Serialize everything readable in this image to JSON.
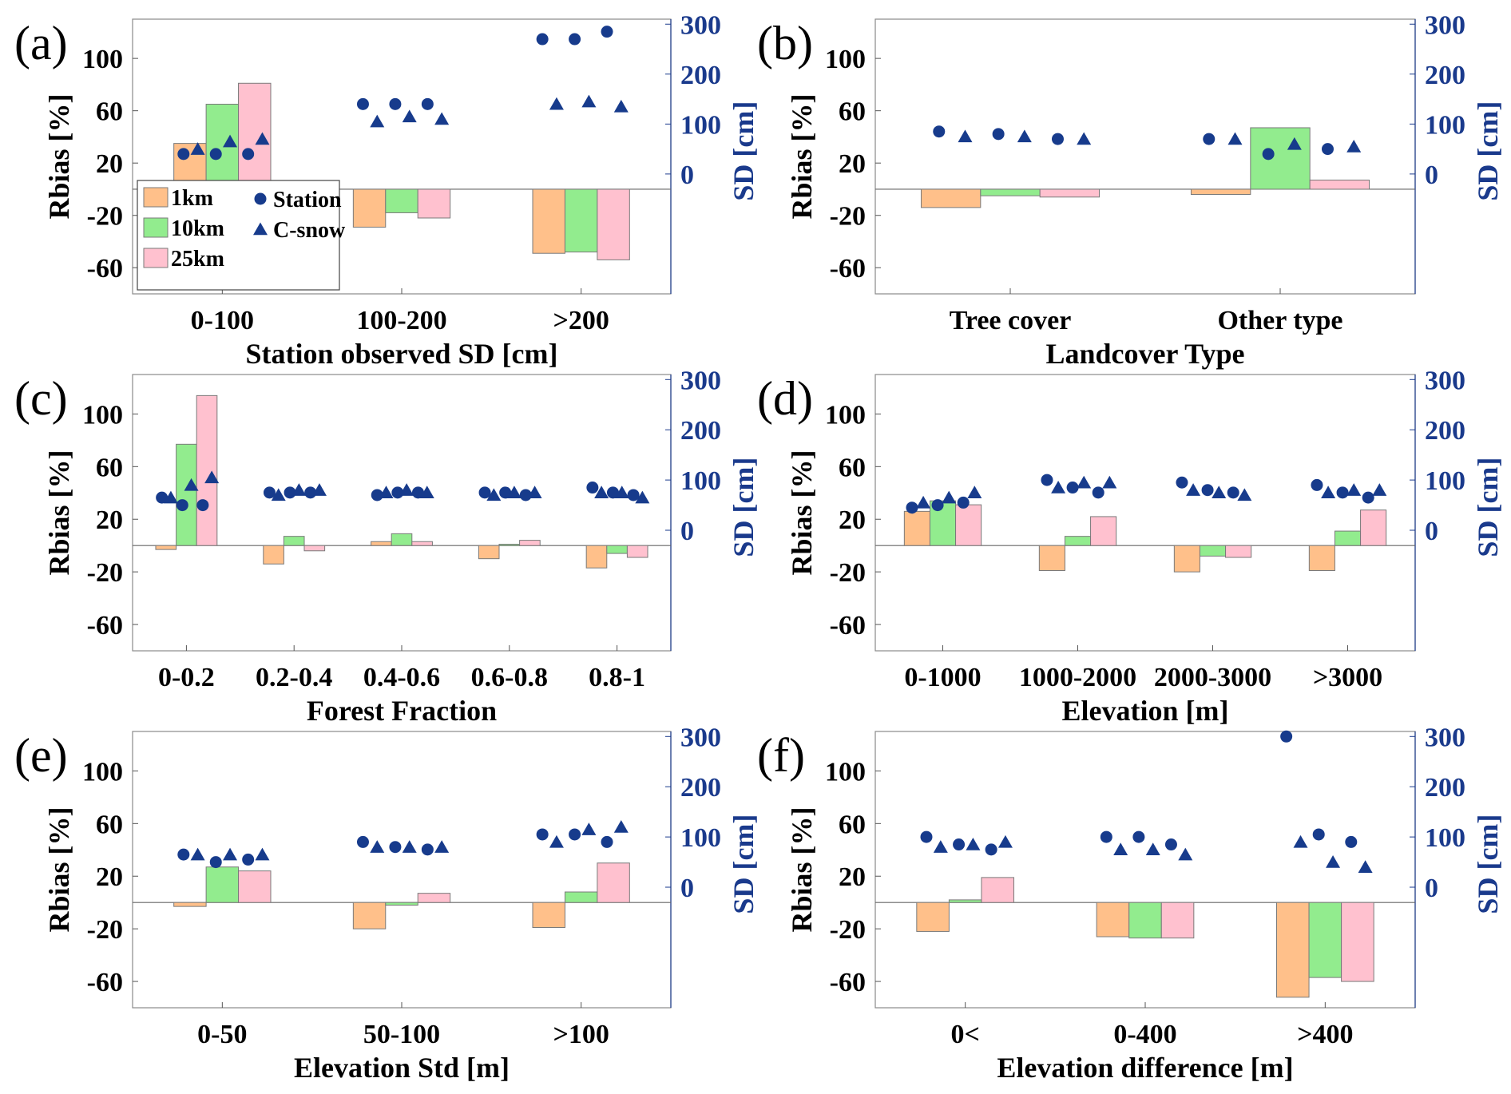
{
  "colors": {
    "res_1km": "#ffc08a",
    "res_10km": "#92ec8e",
    "res_25km": "#ffc1cf",
    "marker": "#173b8c",
    "right_axis": "#1a3a8c"
  },
  "legend": {
    "items": [
      {
        "label": "1km",
        "kind": "bar"
      },
      {
        "label": "10km",
        "kind": "bar"
      },
      {
        "label": "25km",
        "kind": "bar"
      },
      {
        "label": "Station",
        "kind": "circle"
      },
      {
        "label": "C-snow",
        "kind": "triangle"
      }
    ]
  },
  "chart_data": [
    {
      "type": "bar",
      "panel_label": "(a)",
      "xlabel": "Station observed SD [cm]",
      "ylabel": "Rbias [%]",
      "y2label": "SD [cm]",
      "ylim": [
        -80,
        130
      ],
      "yticks": [
        -60,
        -20,
        20,
        60,
        100
      ],
      "y2lim": [
        -240,
        310
      ],
      "y2ticks": [
        0,
        100,
        200,
        300
      ],
      "categories": [
        "0-100",
        "100-200",
        ">200"
      ],
      "series": [
        {
          "name": "1km",
          "values": [
            35,
            -29,
            -49
          ]
        },
        {
          "name": "10km",
          "values": [
            65,
            -18,
            -48
          ]
        },
        {
          "name": "25km",
          "values": [
            81,
            -22,
            -54
          ]
        }
      ],
      "station_sd": [
        [
          40,
          40,
          40
        ],
        [
          140,
          140,
          140
        ],
        [
          270,
          270,
          285
        ]
      ],
      "csnow_sd": [
        [
          50,
          65,
          70
        ],
        [
          105,
          115,
          110
        ],
        [
          140,
          145,
          135
        ]
      ],
      "show_legend": true
    },
    {
      "type": "bar",
      "panel_label": "(b)",
      "xlabel": "Landcover Type",
      "ylabel": "Rbias [%]",
      "y2label": "SD [cm]",
      "ylim": [
        -80,
        130
      ],
      "yticks": [
        -60,
        -20,
        20,
        60,
        100
      ],
      "y2lim": [
        -240,
        310
      ],
      "y2ticks": [
        0,
        100,
        200,
        300
      ],
      "categories": [
        "Tree cover",
        "Other type"
      ],
      "series": [
        {
          "name": "1km",
          "values": [
            -14,
            -4
          ]
        },
        {
          "name": "10km",
          "values": [
            -5,
            47
          ]
        },
        {
          "name": "25km",
          "values": [
            -6,
            7
          ]
        }
      ],
      "station_sd": [
        [
          85,
          80,
          70
        ],
        [
          70,
          40,
          50
        ]
      ],
      "csnow_sd": [
        [
          75,
          75,
          70
        ],
        [
          70,
          60,
          55
        ]
      ],
      "show_legend": false
    },
    {
      "type": "bar",
      "panel_label": "(c)",
      "xlabel": "Forest Fraction",
      "ylabel": "Rbias [%]",
      "y2label": "SD [cm]",
      "ylim": [
        -80,
        130
      ],
      "yticks": [
        -60,
        -20,
        20,
        60,
        100
      ],
      "y2lim": [
        -240,
        310
      ],
      "y2ticks": [
        0,
        100,
        200,
        300
      ],
      "categories": [
        "0-0.2",
        "0.2-0.4",
        "0.4-0.6",
        "0.6-0.8",
        "0.8-1"
      ],
      "series": [
        {
          "name": "1km",
          "values": [
            -3,
            -14,
            3,
            -10,
            -17
          ]
        },
        {
          "name": "10km",
          "values": [
            77,
            7,
            9,
            1,
            -6
          ]
        },
        {
          "name": "25km",
          "values": [
            114,
            -4,
            3,
            4,
            -9
          ]
        }
      ],
      "station_sd": [
        [
          65,
          50,
          50
        ],
        [
          75,
          75,
          75
        ],
        [
          70,
          75,
          75
        ],
        [
          75,
          75,
          70
        ],
        [
          85,
          75,
          70
        ]
      ],
      "csnow_sd": [
        [
          65,
          90,
          105
        ],
        [
          70,
          80,
          80
        ],
        [
          75,
          80,
          75
        ],
        [
          70,
          75,
          75
        ],
        [
          75,
          75,
          65
        ]
      ],
      "show_legend": false
    },
    {
      "type": "bar",
      "panel_label": "(d)",
      "xlabel": "Elevation [m]",
      "ylabel": "Rbias [%]",
      "y2label": "SD [cm]",
      "ylim": [
        -80,
        130
      ],
      "yticks": [
        -60,
        -20,
        20,
        60,
        100
      ],
      "y2lim": [
        -240,
        310
      ],
      "y2ticks": [
        0,
        100,
        200,
        300
      ],
      "categories": [
        "0-1000",
        "1000-2000",
        "2000-3000",
        ">3000"
      ],
      "series": [
        {
          "name": "1km",
          "values": [
            26,
            -19,
            -20,
            -19
          ]
        },
        {
          "name": "10km",
          "values": [
            34,
            7,
            -8,
            11
          ]
        },
        {
          "name": "25km",
          "values": [
            31,
            22,
            -9,
            27
          ]
        }
      ],
      "station_sd": [
        [
          45,
          50,
          55
        ],
        [
          100,
          85,
          75
        ],
        [
          95,
          80,
          75
        ],
        [
          90,
          75,
          65
        ]
      ],
      "csnow_sd": [
        [
          55,
          65,
          75
        ],
        [
          85,
          95,
          95
        ],
        [
          80,
          75,
          70
        ],
        [
          75,
          80,
          80
        ]
      ],
      "show_legend": false
    },
    {
      "type": "bar",
      "panel_label": "(e)",
      "xlabel": "Elevation Std [m]",
      "ylabel": "Rbias [%]",
      "y2label": "SD [cm]",
      "ylim": [
        -80,
        130
      ],
      "yticks": [
        -60,
        -20,
        20,
        60,
        100
      ],
      "y2lim": [
        -240,
        310
      ],
      "y2ticks": [
        0,
        100,
        200,
        300
      ],
      "categories": [
        "0-50",
        "50-100",
        ">100"
      ],
      "series": [
        {
          "name": "1km",
          "values": [
            -3,
            -20,
            -19
          ]
        },
        {
          "name": "10km",
          "values": [
            27,
            -2,
            8
          ]
        },
        {
          "name": "25km",
          "values": [
            24,
            7,
            30
          ]
        }
      ],
      "station_sd": [
        [
          65,
          50,
          55
        ],
        [
          90,
          80,
          75
        ],
        [
          105,
          105,
          90
        ]
      ],
      "csnow_sd": [
        [
          65,
          65,
          65
        ],
        [
          80,
          80,
          80
        ],
        [
          90,
          115,
          120
        ]
      ],
      "show_legend": false
    },
    {
      "type": "bar",
      "panel_label": "(f)",
      "xlabel": "Elevation difference [m]",
      "ylabel": "Rbias [%]",
      "y2label": "SD [cm]",
      "ylim": [
        -80,
        130
      ],
      "yticks": [
        -60,
        -20,
        20,
        60,
        100
      ],
      "y2lim": [
        -240,
        310
      ],
      "y2ticks": [
        0,
        100,
        200,
        300
      ],
      "categories": [
        "0<",
        "0-400",
        ">400"
      ],
      "series": [
        {
          "name": "1km",
          "values": [
            -22,
            -26,
            -72
          ]
        },
        {
          "name": "10km",
          "values": [
            2,
            -27,
            -57
          ]
        },
        {
          "name": "25km",
          "values": [
            19,
            -27,
            -60
          ]
        }
      ],
      "station_sd": [
        [
          100,
          85,
          75
        ],
        [
          100,
          100,
          85
        ],
        [
          300,
          105,
          90
        ]
      ],
      "csnow_sd": [
        [
          80,
          85,
          90
        ],
        [
          75,
          75,
          65
        ],
        [
          90,
          50,
          40
        ]
      ],
      "show_legend": false
    }
  ]
}
